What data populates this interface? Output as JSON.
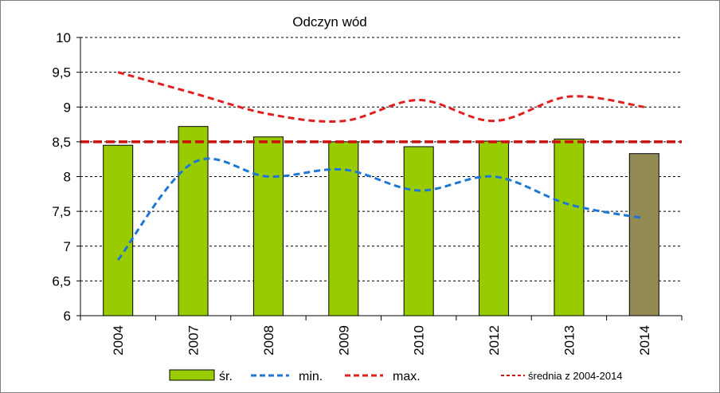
{
  "chart_data": {
    "type": "bar",
    "title": "Odczyn wód",
    "categories": [
      "2004",
      "2007",
      "2008",
      "2009",
      "2010",
      "2012",
      "2013",
      "2014"
    ],
    "ylim": [
      6,
      10
    ],
    "yticks": [
      "6",
      "6,5",
      "7",
      "7,5",
      "8",
      "8,5",
      "9",
      "9,5",
      "10"
    ],
    "grid": true,
    "series": [
      {
        "name": "śr.",
        "kind": "bar",
        "color": "#99cc00",
        "highlight_color": "#948a54",
        "values": [
          8.45,
          8.72,
          8.57,
          8.5,
          8.43,
          8.51,
          8.54,
          8.33
        ]
      },
      {
        "name": "min.",
        "kind": "line",
        "style": "dashed",
        "color": "#1f77d4",
        "values": [
          6.8,
          8.2,
          8.0,
          8.1,
          7.8,
          8.0,
          7.6,
          7.4
        ]
      },
      {
        "name": "max.",
        "kind": "line",
        "style": "dashed",
        "color": "#e02020",
        "values": [
          9.5,
          9.2,
          8.9,
          8.8,
          9.1,
          8.8,
          9.15,
          9.0
        ]
      }
    ],
    "reference_line": {
      "name": "średnia z 2004-2014",
      "value": 8.5,
      "color": "#cc1111"
    },
    "legend_position": "bottom"
  }
}
